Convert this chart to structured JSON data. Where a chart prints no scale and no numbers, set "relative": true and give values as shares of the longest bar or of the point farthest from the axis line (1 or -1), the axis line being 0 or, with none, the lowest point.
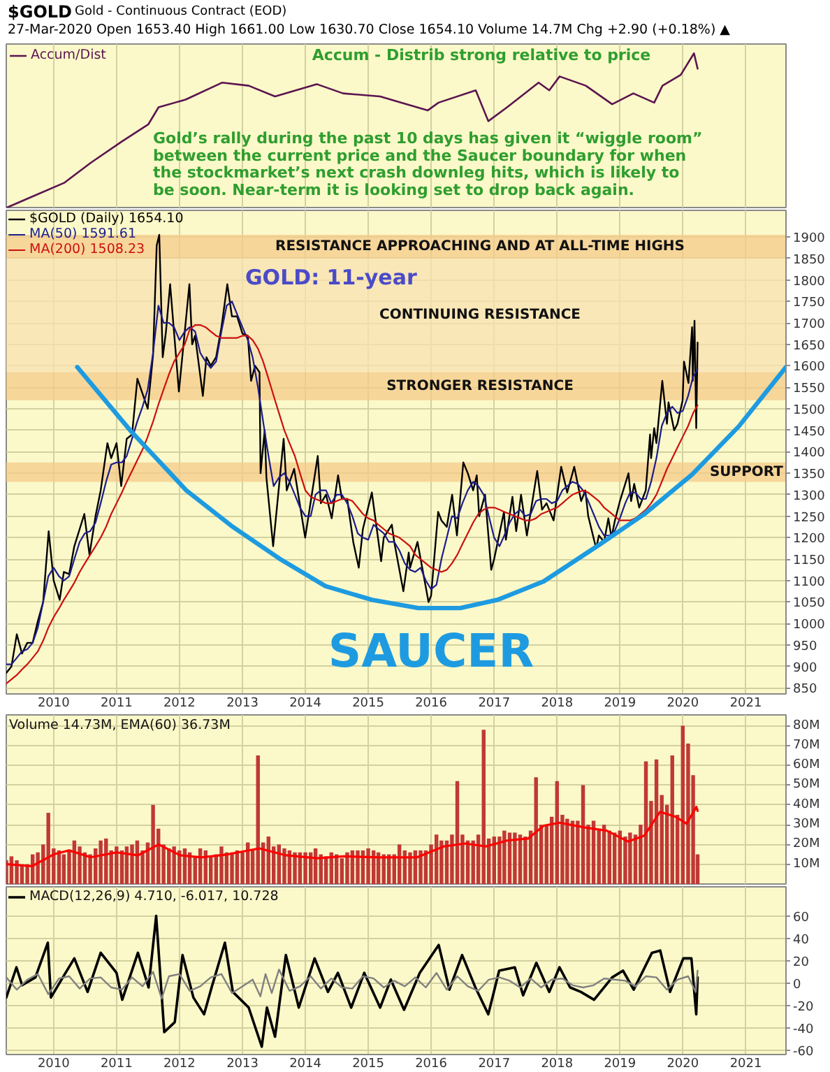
{
  "chart_data": [
    {
      "type": "line",
      "title": "$GOLD",
      "subtitle": "Gold - Continuous Contract (EOD)",
      "annotations": [
        "27-Mar-2020 Open 1653.40 High 1661.00 Low 1630.70 Close 1654.10 Volume 14.7M Chg +2.90 (+0.18%) ▲",
        "Accum - Distrib strong relative to price",
        "Gold’s rally during the past 10 days has given it “wiggle room”\nbetween the current price and the Saucer boundary for when\nthe stockmarket’s next crash downleg hits, which is likely to\nbe soon. Near-term it is looking set to drop back again."
      ],
      "relative": true,
      "xlim": [
        "2009-04-01",
        "2021-08-22"
      ],
      "xticks": [
        "2010",
        "2011",
        "2012",
        "2013",
        "2014",
        "2015",
        "2016",
        "2017",
        "2018",
        "2019",
        "2020",
        "2021"
      ],
      "tick_labels": false,
      "grid": "x",
      "legend": "top left",
      "series": [
        {
          "name": "Accum/Dist",
          "color": "#5c1450",
          "x": [
            "2009-04-05",
            "2009-08-28",
            "2010-03-03",
            "2010-08-04",
            "2011-02-03",
            "2011-07-05",
            "2011-09-02",
            "2012-02-06",
            "2012-09-06",
            "2013-02-06",
            "2013-07-09",
            "2014-03-08",
            "2014-08-08",
            "2015-03-11",
            "2015-07-13",
            "2015-12-13",
            "2016-02-13",
            "2016-09-16",
            "2016-11-28",
            "2017-03-17",
            "2017-09-16",
            "2017-11-17",
            "2018-01-16",
            "2018-06-17",
            "2018-11-17",
            "2019-03-20",
            "2019-07-19",
            "2019-09-05",
            "2019-12-20",
            "2020-03-06",
            "2020-03-27"
          ],
          "values": [
            0,
            0.07,
            0.16,
            0.29,
            0.43,
            0.54,
            0.65,
            0.7,
            0.81,
            0.79,
            0.72,
            0.8,
            0.74,
            0.72,
            0.68,
            0.63,
            0.68,
            0.76,
            0.56,
            0.65,
            0.81,
            0.76,
            0.85,
            0.79,
            0.67,
            0.74,
            0.68,
            0.79,
            0.86,
            1,
            0.9
          ]
        }
      ]
    },
    {
      "type": "line",
      "xlim": [
        "2009-04-01",
        "2021-08-22"
      ],
      "xticks": [
        "2010",
        "2011",
        "2012",
        "2013",
        "2014",
        "2015",
        "2016",
        "2017",
        "2018",
        "2019",
        "2020",
        "2021"
      ],
      "ylim": [
        836,
        1962
      ],
      "yticks": [
        850,
        900,
        950,
        1000,
        1050,
        1100,
        1150,
        1200,
        1250,
        1300,
        1350,
        1400,
        1450,
        1500,
        1550,
        1600,
        1650,
        1700,
        1750,
        1800,
        1850,
        1900
      ],
      "grid": true,
      "legend": "top left",
      "bands": [
        {
          "axis": "y",
          "from": 1850,
          "to": 1905,
          "label": "RESISTANCE APPROACHING AND AT ALL-TIME HIGHS",
          "color": "#f5c98a"
        },
        {
          "axis": "y",
          "from": 1585,
          "to": 1850,
          "label": "CONTINUING RESISTANCE",
          "color": "#f8e0b0"
        },
        {
          "axis": "y",
          "from": 1520,
          "to": 1585,
          "label": "STRONGER RESISTANCE",
          "color": "#f5c98a"
        },
        {
          "axis": "y",
          "from": 1330,
          "to": 1375,
          "label": "SUPPORT",
          "color": "#f5c98a"
        }
      ],
      "annotations": [
        "GOLD: 11-year",
        "SAUCER"
      ],
      "x": [
        "2009-04",
        "2009-05",
        "2009-06",
        "2009-07",
        "2009-08",
        "2009-09",
        "2009-10",
        "2009-11",
        "2009-12",
        "2010-01",
        "2010-02",
        "2010-03",
        "2010-04",
        "2010-05",
        "2010-06",
        "2010-07",
        "2010-08",
        "2010-09",
        "2010-10",
        "2010-11",
        "2010-12",
        "2011-01",
        "2011-02",
        "2011-03",
        "2011-04",
        "2011-05",
        "2011-06",
        "2011-07",
        "2011-08",
        "2011-09",
        "2011-10",
        "2011-11",
        "2011-12",
        "2012-01",
        "2012-02",
        "2012-03",
        "2012-04",
        "2012-05",
        "2012-06",
        "2012-07",
        "2012-08",
        "2012-09",
        "2012-10",
        "2012-11",
        "2012-12",
        "2013-01",
        "2013-02",
        "2013-03",
        "2013-04",
        "2013-05",
        "2013-06",
        "2013-07",
        "2013-08",
        "2013-09",
        "2013-10",
        "2013-11",
        "2013-12",
        "2014-01",
        "2014-02",
        "2014-03",
        "2014-04",
        "2014-05",
        "2014-06",
        "2014-07",
        "2014-08",
        "2014-09",
        "2014-10",
        "2014-11",
        "2014-12",
        "2015-01",
        "2015-02",
        "2015-03",
        "2015-04",
        "2015-05",
        "2015-06",
        "2015-07",
        "2015-08",
        "2015-09",
        "2015-10",
        "2015-11",
        "2015-12",
        "2016-01",
        "2016-02",
        "2016-03",
        "2016-04",
        "2016-05",
        "2016-06",
        "2016-07",
        "2016-08",
        "2016-09",
        "2016-10",
        "2016-11",
        "2016-12",
        "2017-01",
        "2017-02",
        "2017-03",
        "2017-04",
        "2017-05",
        "2017-06",
        "2017-07",
        "2017-08",
        "2017-09",
        "2017-10",
        "2017-11",
        "2017-12",
        "2018-01",
        "2018-02",
        "2018-03",
        "2018-04",
        "2018-05",
        "2018-06",
        "2018-07",
        "2018-08",
        "2018-09",
        "2018-10",
        "2018-11",
        "2018-12",
        "2019-01",
        "2019-02",
        "2019-03",
        "2019-04",
        "2019-05",
        "2019-06",
        "2019-07",
        "2019-08",
        "2019-09",
        "2019-10",
        "2019-11",
        "2019-12",
        "2020-01",
        "2020-02",
        "2020-03",
        "2020-03-27"
      ],
      "series": [
        {
          "name": "$GOLD (Daily) 1654.10",
          "color": "#000000",
          "x": [
            "2009-04-01",
            "2009-05-01",
            "2009-06-01",
            "2009-07-01",
            "2009-08-01",
            "2009-09-01",
            "2009-10-01",
            "2009-11-01",
            "2009-12-03",
            "2010-01-01",
            "2010-02-05",
            "2010-03-01",
            "2010-04-01",
            "2010-05-01",
            "2010-06-01",
            "2010-06-28",
            "2010-07-28",
            "2010-09-01",
            "2010-10-01",
            "2010-11-09",
            "2010-12-01",
            "2011-01-01",
            "2011-01-28",
            "2011-03-01",
            "2011-04-01",
            "2011-05-02",
            "2011-06-01",
            "2011-07-01",
            "2011-08-01",
            "2011-08-22",
            "2011-09-06",
            "2011-09-26",
            "2011-10-15",
            "2011-11-08",
            "2011-12-29",
            "2012-02-28",
            "2012-03-15",
            "2012-04-01",
            "2012-05-16",
            "2012-06-06",
            "2012-07-01",
            "2012-08-01",
            "2012-09-01",
            "2012-10-05",
            "2012-11-01",
            "2012-12-01",
            "2013-01-01",
            "2013-02-01",
            "2013-02-20",
            "2013-03-15",
            "2013-04-10",
            "2013-04-16",
            "2013-05-10",
            "2013-05-20",
            "2013-06-28",
            "2013-08-28",
            "2013-09-15",
            "2013-10-28",
            "2013-12-31",
            "2014-03-14",
            "2014-04-01",
            "2014-05-01",
            "2014-06-03",
            "2014-07-10",
            "2014-08-01",
            "2014-09-01",
            "2014-10-06",
            "2014-11-07",
            "2014-12-01",
            "2015-01-22",
            "2015-03-17",
            "2015-04-01",
            "2015-05-18",
            "2015-06-01",
            "2015-07-24",
            "2015-08-24",
            "2015-09-01",
            "2015-10-14",
            "2015-12-17",
            "2016-01-01",
            "2016-02-11",
            "2016-03-01",
            "2016-04-01",
            "2016-05-02",
            "2016-05-30",
            "2016-07-06",
            "2016-08-01",
            "2016-09-01",
            "2016-09-22",
            "2016-10-06",
            "2016-11-09",
            "2016-12-15",
            "2017-01-01",
            "2017-02-27",
            "2017-03-10",
            "2017-04-17",
            "2017-05-09",
            "2017-06-06",
            "2017-07-10",
            "2017-09-08",
            "2017-10-06",
            "2017-11-01",
            "2017-12-12",
            "2018-01-25",
            "2018-03-01",
            "2018-04-11",
            "2018-05-21",
            "2018-06-14",
            "2018-07-01",
            "2018-08-16",
            "2018-09-01",
            "2018-10-01",
            "2018-10-26",
            "2018-11-13",
            "2018-12-03",
            "2019-01-01",
            "2019-02-20",
            "2019-03-07",
            "2019-03-25",
            "2019-04-23",
            "2019-05-31",
            "2019-06-25",
            "2019-07-01",
            "2019-07-19",
            "2019-08-01",
            "2019-09-04",
            "2019-10-01",
            "2019-10-10",
            "2019-11-12",
            "2019-12-01",
            "2019-12-31",
            "2020-01-08",
            "2020-02-03",
            "2020-02-24",
            "2020-02-28",
            "2020-03-09",
            "2020-03-19",
            "2020-03-27"
          ],
          "values": [
            885,
            900,
            975,
            930,
            955,
            955,
            1005,
            1050,
            1215,
            1100,
            1055,
            1120,
            1115,
            1180,
            1220,
            1255,
            1160,
            1250,
            1310,
            1420,
            1385,
            1420,
            1320,
            1430,
            1440,
            1570,
            1535,
            1500,
            1625,
            1880,
            1905,
            1620,
            1680,
            1790,
            1540,
            1790,
            1650,
            1670,
            1530,
            1620,
            1600,
            1620,
            1690,
            1790,
            1715,
            1715,
            1675,
            1670,
            1565,
            1600,
            1585,
            1350,
            1450,
            1340,
            1180,
            1430,
            1310,
            1360,
            1200,
            1390,
            1280,
            1300,
            1245,
            1345,
            1290,
            1290,
            1190,
            1130,
            1220,
            1305,
            1145,
            1200,
            1230,
            1190,
            1075,
            1165,
            1130,
            1190,
            1050,
            1065,
            1260,
            1240,
            1225,
            1300,
            1205,
            1375,
            1350,
            1310,
            1345,
            1250,
            1300,
            1125,
            1150,
            1260,
            1195,
            1295,
            1215,
            1300,
            1205,
            1355,
            1265,
            1280,
            1240,
            1365,
            1305,
            1365,
            1285,
            1310,
            1250,
            1175,
            1205,
            1190,
            1245,
            1200,
            1240,
            1285,
            1350,
            1285,
            1325,
            1270,
            1310,
            1440,
            1385,
            1455,
            1420,
            1565,
            1465,
            1515,
            1450,
            1465,
            1520,
            1610,
            1560,
            1690,
            1565,
            1705,
            1455,
            1654
          ]
        },
        {
          "name": "MA(50) 1591.61",
          "color": "#1c1c8c",
          "values": [
            905,
            905,
            920,
            935,
            940,
            955,
            990,
            1050,
            1110,
            1130,
            1110,
            1100,
            1110,
            1150,
            1190,
            1210,
            1215,
            1235,
            1280,
            1330,
            1370,
            1375,
            1375,
            1390,
            1430,
            1470,
            1505,
            1545,
            1630,
            1740,
            1700,
            1700,
            1690,
            1660,
            1680,
            1690,
            1680,
            1630,
            1610,
            1595,
            1610,
            1680,
            1740,
            1750,
            1720,
            1690,
            1660,
            1620,
            1550,
            1470,
            1390,
            1320,
            1340,
            1350,
            1330,
            1300,
            1270,
            1250,
            1250,
            1300,
            1310,
            1310,
            1280,
            1300,
            1300,
            1280,
            1250,
            1210,
            1200,
            1195,
            1230,
            1220,
            1210,
            1190,
            1190,
            1170,
            1140,
            1125,
            1120,
            1130,
            1100,
            1080,
            1090,
            1150,
            1200,
            1250,
            1245,
            1280,
            1310,
            1330,
            1320,
            1300,
            1250,
            1200,
            1180,
            1205,
            1235,
            1255,
            1265,
            1250,
            1255,
            1285,
            1290,
            1290,
            1280,
            1285,
            1310,
            1320,
            1330,
            1325,
            1310,
            1285,
            1255,
            1225,
            1205,
            1205,
            1215,
            1245,
            1280,
            1305,
            1305,
            1290,
            1290,
            1330,
            1385,
            1460,
            1490,
            1505,
            1490,
            1495,
            1530,
            1575,
            1592
          ]
        },
        {
          "name": "MA(200) 1508.23",
          "color": "#cc1010",
          "values": [
            860,
            870,
            880,
            893,
            905,
            920,
            935,
            960,
            990,
            1015,
            1035,
            1055,
            1075,
            1095,
            1120,
            1140,
            1160,
            1180,
            1200,
            1225,
            1255,
            1280,
            1305,
            1330,
            1355,
            1380,
            1405,
            1435,
            1470,
            1510,
            1545,
            1580,
            1610,
            1630,
            1650,
            1685,
            1695,
            1695,
            1690,
            1680,
            1670,
            1665,
            1665,
            1665,
            1665,
            1670,
            1670,
            1660,
            1640,
            1610,
            1570,
            1530,
            1490,
            1450,
            1420,
            1390,
            1350,
            1310,
            1295,
            1290,
            1285,
            1280,
            1280,
            1285,
            1290,
            1290,
            1285,
            1270,
            1255,
            1245,
            1240,
            1230,
            1220,
            1210,
            1205,
            1200,
            1190,
            1180,
            1160,
            1150,
            1140,
            1130,
            1125,
            1120,
            1125,
            1140,
            1160,
            1185,
            1210,
            1235,
            1255,
            1265,
            1270,
            1270,
            1265,
            1260,
            1255,
            1250,
            1245,
            1240,
            1240,
            1245,
            1255,
            1260,
            1265,
            1270,
            1280,
            1290,
            1300,
            1305,
            1310,
            1305,
            1295,
            1285,
            1270,
            1260,
            1250,
            1240,
            1240,
            1240,
            1245,
            1255,
            1265,
            1280,
            1300,
            1330,
            1360,
            1385,
            1410,
            1435,
            1460,
            1490,
            1508
          ]
        },
        {
          "color": "#1e9be0",
          "x": [
            "2010-05-18",
            "2011-03-25",
            "2012-02-10",
            "2012-11-06",
            "2013-08-04",
            "2014-04-28",
            "2015-01-23",
            "2015-10-19",
            "2016-06-18",
            "2017-01-19",
            "2017-10-15",
            "2018-09-02",
            "2019-05-30",
            "2020-02-24",
            "2020-11-21",
            "2021-08-22"
          ],
          "values": [
            1597,
            1448,
            1310,
            1225,
            1151,
            1087,
            1055,
            1036,
            1036,
            1055,
            1098,
            1183,
            1257,
            1347,
            1459,
            1597
          ]
        }
      ]
    },
    {
      "type": "bar",
      "legend_title": "Volume 14.73M, EMA(60) 36.73M",
      "xlim": [
        "2009-04-01",
        "2021-08-22"
      ],
      "xticks": [
        "2010",
        "2011",
        "2012",
        "2013",
        "2014",
        "2015",
        "2016",
        "2017",
        "2018",
        "2019",
        "2020",
        "2021"
      ],
      "tick_labels": "y",
      "ylim": [
        0,
        85.5
      ],
      "yticks": [
        {
          "value": 10,
          "label": "10M"
        },
        {
          "value": 20,
          "label": "20M"
        },
        {
          "value": 30,
          "label": "30M"
        },
        {
          "value": 40,
          "label": "40M"
        },
        {
          "value": 50,
          "label": "50M"
        },
        {
          "value": 60,
          "label": "60M"
        },
        {
          "value": 70,
          "label": "70M"
        },
        {
          "value": 80,
          "label": "80M"
        }
      ],
      "grid": true,
      "x": [
        "2009-04",
        "2009-05",
        "2009-06",
        "2009-07",
        "2009-08",
        "2009-09",
        "2009-10",
        "2009-11",
        "2009-12",
        "2010-01",
        "2010-02",
        "2010-03",
        "2010-04",
        "2010-05",
        "2010-06",
        "2010-07",
        "2010-08",
        "2010-09",
        "2010-10",
        "2010-11",
        "2010-12",
        "2011-01",
        "2011-02",
        "2011-03",
        "2011-04",
        "2011-05",
        "2011-06",
        "2011-07",
        "2011-08",
        "2011-09",
        "2011-10",
        "2011-11",
        "2011-12",
        "2012-01",
        "2012-02",
        "2012-03",
        "2012-04",
        "2012-05",
        "2012-06",
        "2012-07",
        "2012-08",
        "2012-09",
        "2012-10",
        "2012-11",
        "2012-12",
        "2013-01",
        "2013-02",
        "2013-03",
        "2013-04",
        "2013-05",
        "2013-06",
        "2013-07",
        "2013-08",
        "2013-09",
        "2013-10",
        "2013-11",
        "2013-12",
        "2014-01",
        "2014-02",
        "2014-03",
        "2014-04",
        "2014-05",
        "2014-06",
        "2014-07",
        "2014-08",
        "2014-09",
        "2014-10",
        "2014-11",
        "2014-12",
        "2015-01",
        "2015-02",
        "2015-03",
        "2015-04",
        "2015-05",
        "2015-06",
        "2015-07",
        "2015-08",
        "2015-09",
        "2015-10",
        "2015-11",
        "2015-12",
        "2016-01",
        "2016-02",
        "2016-03",
        "2016-04",
        "2016-05",
        "2016-06",
        "2016-07",
        "2016-08",
        "2016-09",
        "2016-10",
        "2016-11",
        "2016-12",
        "2017-01",
        "2017-02",
        "2017-03",
        "2017-04",
        "2017-05",
        "2017-06",
        "2017-07",
        "2017-08",
        "2017-09",
        "2017-10",
        "2017-11",
        "2017-12",
        "2018-01",
        "2018-02",
        "2018-03",
        "2018-04",
        "2018-05",
        "2018-06",
        "2018-07",
        "2018-08",
        "2018-09",
        "2018-10",
        "2018-11",
        "2018-12",
        "2019-01",
        "2019-02",
        "2019-03",
        "2019-04",
        "2019-05",
        "2019-06",
        "2019-07",
        "2019-08",
        "2019-09",
        "2019-10",
        "2019-11",
        "2019-12",
        "2020-01",
        "2020-02",
        "2020-03",
        "2020-03-27"
      ],
      "series": [
        {
          "type": "bar",
          "color": "#c03838",
          "values": [
            12,
            14,
            12,
            10,
            10,
            15,
            16,
            20,
            36,
            18,
            17,
            15,
            17,
            22,
            19,
            16,
            15,
            18,
            22,
            23,
            17,
            19,
            17,
            19,
            20,
            22,
            17,
            21,
            40,
            28,
            20,
            18,
            19,
            17,
            18,
            16,
            14,
            18,
            17,
            14,
            15,
            19,
            16,
            16,
            17,
            16,
            21,
            17,
            65,
            21,
            24,
            19,
            20,
            18,
            17,
            16,
            16,
            16,
            16,
            18,
            15,
            14,
            16,
            15,
            13,
            16,
            17,
            17,
            17,
            18,
            17,
            16,
            15,
            15,
            15,
            20,
            17,
            16,
            17,
            17,
            17,
            20,
            25,
            22,
            22,
            25,
            52,
            25,
            22,
            22,
            25,
            78,
            23,
            24,
            24,
            27,
            26,
            26,
            25,
            24,
            27,
            54,
            30,
            30,
            34,
            52,
            35,
            33,
            32,
            32,
            50,
            30,
            32,
            28,
            30,
            27,
            26,
            27,
            24,
            26,
            25,
            30,
            62,
            42,
            63,
            45,
            40,
            65,
            35,
            80,
            71,
            55,
            15
          ]
        },
        {
          "type": "line",
          "color": "#ff0000",
          "x": [
            "2009-04-05",
            "2009-08-28",
            "2010-01-01",
            "2010-04-01",
            "2010-08-04",
            "2011-01-01",
            "2011-05-05",
            "2011-09-03",
            "2012-01-05",
            "2012-05-08",
            "2012-10-09",
            "2013-04-09",
            "2013-09-10",
            "2014-03-11",
            "2014-08-12",
            "2015-03-11",
            "2015-10-12",
            "2016-03-14",
            "2016-07-17",
            "2016-11-14",
            "2017-03-18",
            "2017-07-17",
            "2017-10-16",
            "2018-01-15",
            "2018-06-17",
            "2018-10-16",
            "2019-02-17",
            "2019-05-23",
            "2019-08-22",
            "2019-11-20",
            "2020-01-23",
            "2020-03-20",
            "2020-03-27"
          ],
          "values": [
            10,
            9,
            15,
            17,
            13.5,
            16,
            14.5,
            20,
            14.5,
            13.5,
            15,
            18,
            14.5,
            13,
            14,
            13.5,
            13.5,
            19,
            20.5,
            19,
            22,
            23,
            29.5,
            31,
            28.5,
            27,
            21.5,
            24.5,
            36.5,
            34,
            30.5,
            39,
            37
          ]
        }
      ]
    },
    {
      "type": "line",
      "legend_title": "MACD(12,26,9) 4.710, -6.017, 10.728",
      "legend": "top left",
      "xlim": [
        "2009-04-01",
        "2021-08-22"
      ],
      "xticks": [
        "2010",
        "2011",
        "2012",
        "2013",
        "2014",
        "2015",
        "2016",
        "2017",
        "2018",
        "2019",
        "2020",
        "2021"
      ],
      "ylim": [
        -64,
        86
      ],
      "yticks": [
        -60,
        -40,
        -20,
        0,
        20,
        40,
        60
      ],
      "grid": true,
      "series": [
        {
          "color": "#000000",
          "x": [
            "2009-04-01",
            "2009-05-30",
            "2009-07-02",
            "2009-09-17",
            "2009-11-28",
            "2009-12-16",
            "2010-03-03",
            "2010-05-01",
            "2010-07-17",
            "2010-10-01",
            "2011-01-01",
            "2011-02-03",
            "2011-05-05",
            "2011-07-06",
            "2011-08-19",
            "2011-10-05",
            "2011-12-05",
            "2012-01-19",
            "2012-03-22",
            "2012-05-23",
            "2012-07-06",
            "2012-09-21",
            "2012-11-06",
            "2013-02-06",
            "2013-04-23",
            "2013-05-23",
            "2013-07-09",
            "2013-09-10",
            "2013-11-24",
            "2014-02-24",
            "2014-05-12",
            "2014-07-09",
            "2014-09-24",
            "2014-12-09",
            "2015-03-11",
            "2015-05-12",
            "2015-07-28",
            "2015-10-27",
            "2016-02-14",
            "2016-04-16",
            "2016-06-29",
            "2016-09-14",
            "2016-11-28",
            "2017-01-30",
            "2017-05-01",
            "2017-06-18",
            "2017-09-03",
            "2017-11-17",
            "2018-01-15",
            "2018-03-18",
            "2018-05-19",
            "2018-08-04",
            "2018-11-17",
            "2019-01-19",
            "2019-03-22",
            "2019-07-06",
            "2019-08-23",
            "2019-10-19",
            "2020-01-04",
            "2020-02-20",
            "2020-03-19",
            "2020-03-27"
          ],
          "values": [
            -13,
            14,
            -2,
            5,
            36,
            -13,
            7,
            22,
            -8,
            27,
            9,
            -15,
            27,
            -4,
            60,
            -44,
            -35,
            25,
            -13,
            -28,
            -4,
            36,
            -8,
            -22,
            -57,
            -22,
            -48,
            25,
            -22,
            22,
            -8,
            9,
            -22,
            9,
            -22,
            3,
            -24,
            9,
            34,
            -6,
            25,
            -4,
            -28,
            11,
            14,
            -11,
            18,
            -8,
            14,
            -4,
            -8,
            -15,
            5,
            11,
            -6,
            27,
            29,
            -8,
            22,
            22,
            -28,
            5
          ]
        },
        {
          "color": "#808080",
          "x": [
            "2009-04-01",
            "2009-06-01",
            "2009-08-01",
            "2009-10-01",
            "2009-12-01",
            "2010-02-01",
            "2010-04-01",
            "2010-06-01",
            "2010-08-01",
            "2010-10-01",
            "2010-12-01",
            "2011-02-01",
            "2011-04-01",
            "2011-06-01",
            "2011-08-01",
            "2011-09-20",
            "2011-11-01",
            "2012-01-01",
            "2012-03-01",
            "2012-05-01",
            "2012-07-01",
            "2012-09-01",
            "2012-11-01",
            "2013-01-01",
            "2013-03-01",
            "2013-04-15",
            "2013-05-15",
            "2013-06-20",
            "2013-08-01",
            "2013-10-01",
            "2013-12-01",
            "2014-02-01",
            "2014-04-01",
            "2014-06-01",
            "2014-08-01",
            "2014-10-01",
            "2014-12-01",
            "2015-02-01",
            "2015-04-01",
            "2015-06-01",
            "2015-08-01",
            "2015-10-01",
            "2015-12-01",
            "2016-02-01",
            "2016-04-01",
            "2016-06-01",
            "2016-08-01",
            "2016-10-01",
            "2016-12-01",
            "2017-02-01",
            "2017-04-01",
            "2017-06-01",
            "2017-08-01",
            "2017-10-01",
            "2017-12-01",
            "2018-02-01",
            "2018-04-01",
            "2018-06-01",
            "2018-08-01",
            "2018-10-01",
            "2018-12-01",
            "2019-02-01",
            "2019-04-01",
            "2019-06-01",
            "2019-08-01",
            "2019-10-01",
            "2019-12-01",
            "2020-02-01",
            "2020-03-16",
            "2020-03-27"
          ],
          "values": [
            5,
            -6,
            3,
            8,
            -10,
            4,
            6,
            -5,
            4,
            5,
            -4,
            -6,
            5,
            -3,
            10,
            -14,
            6,
            8,
            -7,
            -3,
            5,
            8,
            -9,
            -3,
            3,
            -12,
            8,
            -9,
            12,
            -7,
            -3,
            6,
            -5,
            4,
            -4,
            -5,
            6,
            4,
            -4,
            2,
            -3,
            5,
            -4,
            9,
            -6,
            6,
            -3,
            -7,
            3,
            5,
            2,
            -4,
            4,
            -4,
            3,
            4,
            -2,
            -4,
            -2,
            4,
            3,
            2,
            -3,
            6,
            5,
            -6,
            3,
            6,
            -8,
            11
          ]
        }
      ]
    }
  ]
}
